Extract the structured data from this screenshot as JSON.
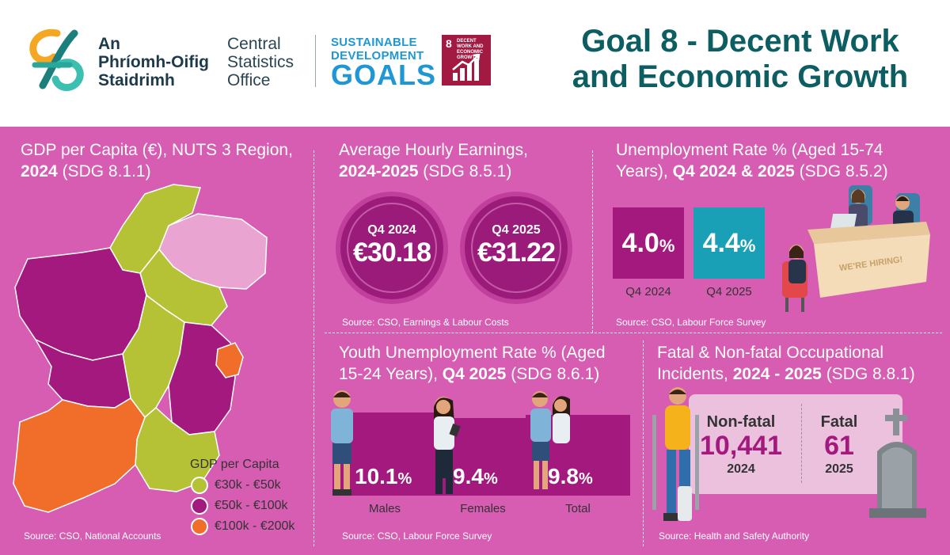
{
  "header": {
    "cso_name_lines": [
      "An",
      "Phríomh-Oifig",
      "Staidrimh"
    ],
    "cso_english_lines": [
      "Central",
      "Statistics",
      "Office"
    ],
    "sdg_word_lines": [
      "SUSTAINABLE",
      "DEVELOPMENT"
    ],
    "sdg_goals": "GOALS",
    "goal_tile_number": "8",
    "goal_tile_text": "DECENT WORK AND ECONOMIC GROWTH",
    "title_line1": "Goal 8 - Decent Work",
    "title_line2": "and Economic Growth",
    "colors": {
      "title": "#0c5e63",
      "sdg_blue": "#1f97d4",
      "goal_tile": "#a21942"
    }
  },
  "gdp": {
    "title_line1": "GDP per Capita (€), NUTS 3 Region,",
    "title_year": "2024",
    "title_sdg": "(SDG 8.1.1)",
    "legend_title": "GDP per Capita",
    "legend": [
      {
        "label": "€30k - €50k",
        "color": "#b5c235"
      },
      {
        "label": "€50k - €100k",
        "color": "#a3197e"
      },
      {
        "label": "€100k - €200k",
        "color": "#f06e2a"
      }
    ],
    "source": "Source: CSO, National Accounts"
  },
  "earnings": {
    "title_line1": "Average Hourly Earnings,",
    "title_years": "2024-2025",
    "title_sdg": "(SDG 8.5.1)",
    "coins": [
      {
        "quarter": "Q4 2024",
        "value": "€30.18"
      },
      {
        "quarter": "Q4 2025",
        "value": "€31.22"
      }
    ],
    "source": "Source: CSO, Earnings & Labour Costs"
  },
  "unemployment": {
    "title_line1": "Unemployment Rate % (Aged 15-74",
    "title_line2_plain": "Years),",
    "title_line2_bold": "Q4 2024 & 2025",
    "title_sdg": "(SDG 8.5.2)",
    "items": [
      {
        "label": "Q4 2024",
        "value": "4.0",
        "unit": "%",
        "color": "#a3197e"
      },
      {
        "label": "Q4 2025",
        "value": "4.4",
        "unit": "%",
        "color": "#1aa0b6"
      }
    ],
    "sign_text": "WE'RE HIRING!",
    "source": "Source: CSO, Labour Force Survey"
  },
  "youth": {
    "title_line1": "Youth Unemployment Rate % (Aged",
    "title_line2_plain": "15-24 Years),",
    "title_line2_bold": "Q4 2025",
    "title_sdg": "(SDG 8.6.1)",
    "items": [
      {
        "label": "Males",
        "value": "10.1",
        "unit": "%",
        "rate": 10.1
      },
      {
        "label": "Females",
        "value": "9.4",
        "unit": "%",
        "rate": 9.4
      },
      {
        "label": "Total",
        "value": "9.8",
        "unit": "%",
        "rate": 9.8
      }
    ],
    "source": "Source: CSO, Labour Force Survey"
  },
  "incidents": {
    "title_line1": "Fatal & Non-fatal Occupational",
    "title_line2_plain": "Incidents,",
    "title_line2_bold": "2024 - 2025",
    "title_sdg": "(SDG 8.8.1)",
    "nonfatal": {
      "label": "Non-fatal",
      "value": "10,441",
      "year": "2024"
    },
    "fatal": {
      "label": "Fatal",
      "value": "61",
      "year": "2025"
    },
    "source": "Source: Health and Safety Authority"
  },
  "colors": {
    "panel_bg": "#d65db1",
    "accent_purple": "#a3197e",
    "accent_teal": "#1aa0b6"
  }
}
